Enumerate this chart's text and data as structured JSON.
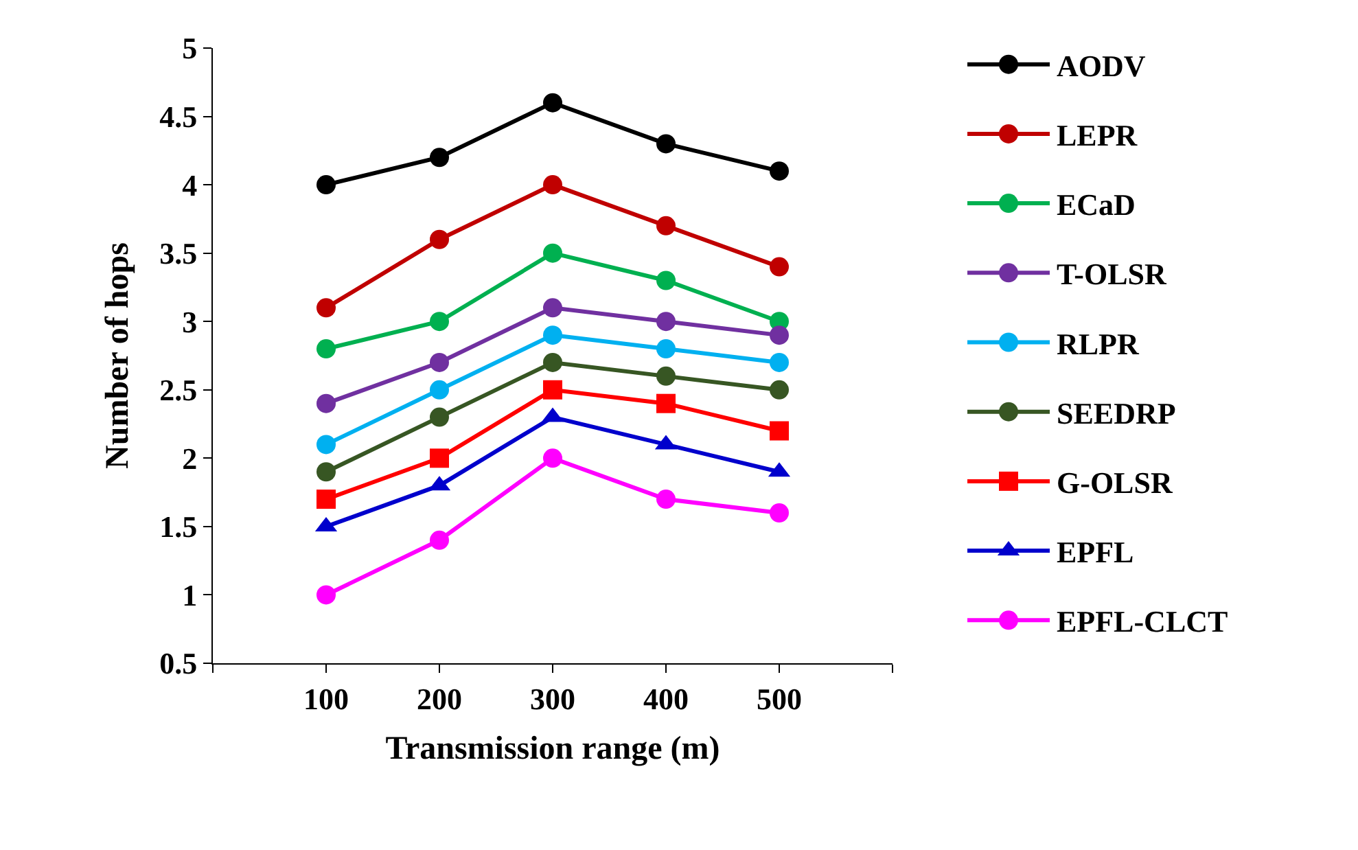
{
  "chart_data": {
    "type": "line",
    "xlabel": "Transmission range (m)",
    "ylabel": "Number of hops",
    "x": [
      100,
      200,
      300,
      400,
      500
    ],
    "xlim": [
      0,
      600
    ],
    "xticks": [
      {
        "value": 0,
        "label": null
      },
      100,
      200,
      300,
      400,
      500,
      {
        "value": 600,
        "label": null
      }
    ],
    "ylim": [
      0.5,
      5
    ],
    "yticks": [
      {
        "value": 0.5,
        "label": "0.5"
      },
      1,
      1.5,
      2,
      2.5,
      3,
      3.5,
      4,
      4.5,
      5
    ],
    "legend": "right",
    "marker": "circle",
    "line_style": "solid",
    "series": [
      {
        "name": "AODV",
        "color": "#000000",
        "values": [
          4.0,
          4.2,
          4.6,
          4.3,
          4.1
        ]
      },
      {
        "name": "LEPR",
        "color": "#c00000",
        "values": [
          3.1,
          3.6,
          4.0,
          3.7,
          3.4
        ]
      },
      {
        "name": "ECaD",
        "color": "#00b050",
        "values": [
          2.8,
          3.0,
          3.5,
          3.3,
          3.0
        ]
      },
      {
        "name": "T-OLSR",
        "color": "#7030a0",
        "values": [
          2.4,
          2.7,
          3.1,
          3.0,
          2.9
        ]
      },
      {
        "name": "RLPR",
        "color": "#00b0f0",
        "values": [
          2.1,
          2.5,
          2.9,
          2.8,
          2.7
        ]
      },
      {
        "name": "SEEDRP",
        "color": "#375623",
        "values": [
          1.9,
          2.3,
          2.7,
          2.6,
          2.5
        ]
      },
      {
        "name": "G-OLSR",
        "color": "#ff0000",
        "marker": "square",
        "values": [
          1.7,
          2.0,
          2.5,
          2.4,
          2.2
        ]
      },
      {
        "name": "EPFL",
        "color": "#0000cc",
        "marker": "triangle",
        "values": [
          1.5,
          1.8,
          2.3,
          2.1,
          1.9
        ]
      },
      {
        "name": "EPFL-CLCT",
        "color": "#ff00ff",
        "values": [
          1.0,
          1.4,
          2.0,
          1.7,
          1.6
        ]
      }
    ]
  }
}
